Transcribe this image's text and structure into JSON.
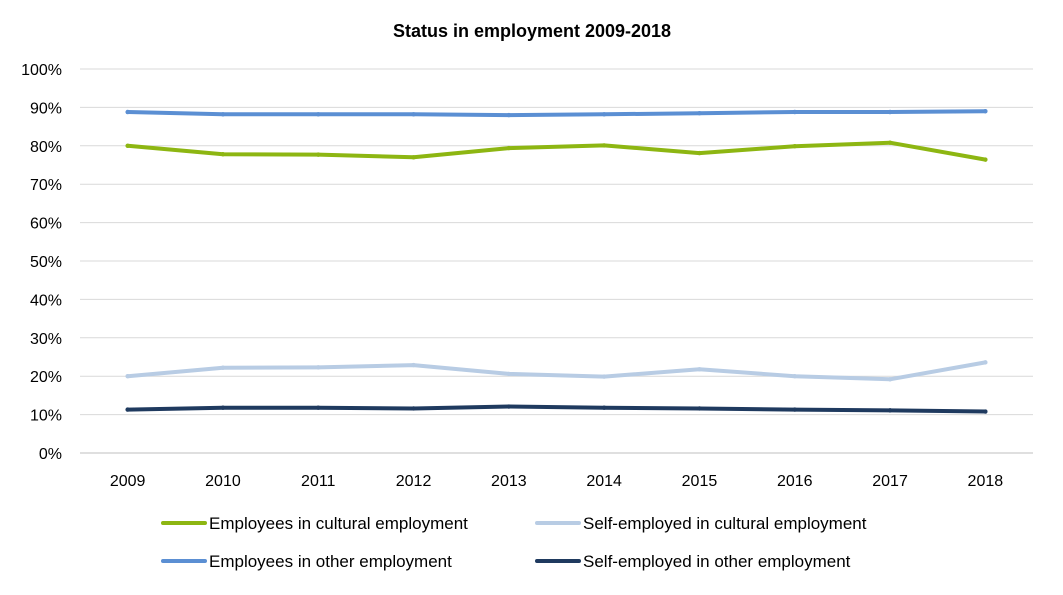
{
  "chart_data": {
    "type": "line",
    "title": "Status in employment 2009-2018",
    "xlabel": "",
    "ylabel": "",
    "categories": [
      "2009",
      "2010",
      "2011",
      "2012",
      "2013",
      "2014",
      "2015",
      "2016",
      "2017",
      "2018"
    ],
    "y_ticks": [
      "0%",
      "10%",
      "20%",
      "30%",
      "40%",
      "50%",
      "60%",
      "70%",
      "80%",
      "90%",
      "100%"
    ],
    "ylim": [
      0,
      100
    ],
    "grid": "horizontal",
    "legend_position": "bottom",
    "series": [
      {
        "name": "Employees in cultural employment",
        "color": "#8DB612",
        "values": [
          80.0,
          77.8,
          77.7,
          77.0,
          79.4,
          80.1,
          78.1,
          79.9,
          80.8,
          76.4
        ]
      },
      {
        "name": "Self-employed in cultural employment",
        "color": "#B8CCE4",
        "values": [
          20.0,
          22.2,
          22.3,
          22.9,
          20.6,
          19.9,
          21.8,
          20.0,
          19.2,
          23.6
        ]
      },
      {
        "name": "Employees in other employment",
        "color": "#5B8FD3",
        "values": [
          88.8,
          88.2,
          88.2,
          88.2,
          88.0,
          88.2,
          88.5,
          88.8,
          88.8,
          89.0
        ]
      },
      {
        "name": "Self-employed in other employment",
        "color": "#1F3A5F",
        "values": [
          11.3,
          11.8,
          11.8,
          11.6,
          12.1,
          11.8,
          11.6,
          11.3,
          11.1,
          10.8
        ]
      }
    ]
  }
}
